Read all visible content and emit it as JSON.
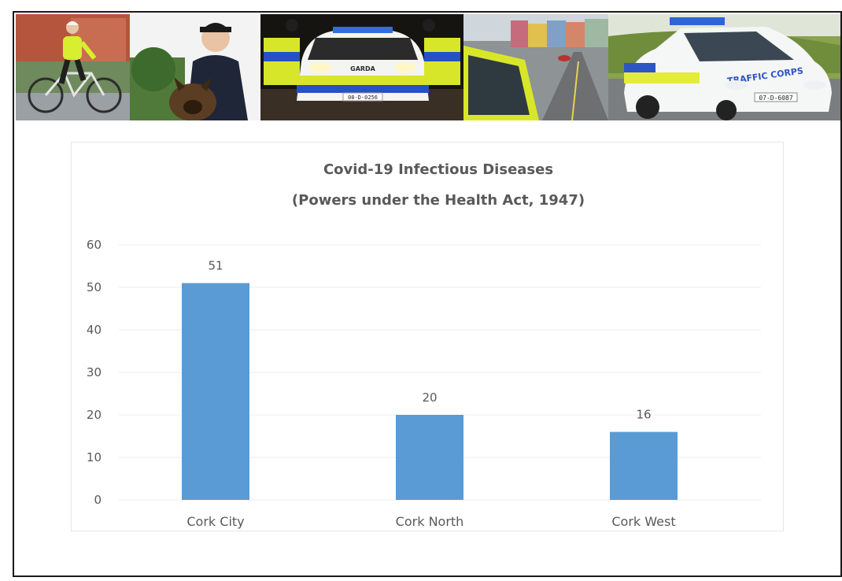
{
  "banner": {
    "photos": [
      {
        "name": "photo-cyclist-officer"
      },
      {
        "name": "photo-dog-handler"
      },
      {
        "name": "photo-garda-car-night"
      },
      {
        "name": "photo-street-patrol"
      },
      {
        "name": "photo-traffic-corps-car"
      }
    ],
    "garda_text": "GARDA",
    "traffic_text": "TRAFFIC CORPS",
    "plate_night": "08-D-0256",
    "plate_traffic": "07-D-6087"
  },
  "chart_data": {
    "type": "bar",
    "title": "Covid-19 Infectious Diseases",
    "subtitle": "(Powers under the Health Act, 1947)",
    "categories": [
      "Cork City",
      "Cork North",
      "Cork West"
    ],
    "values": [
      51,
      20,
      16
    ],
    "ylim": [
      0,
      60
    ],
    "yticks": [
      0,
      10,
      20,
      30,
      40,
      50,
      60
    ],
    "xlabel": "",
    "ylabel": "",
    "grid": true,
    "legend": "none",
    "bar_color": "#5b9bd5",
    "grid_color": "#ececec",
    "label_color": "#595959"
  }
}
